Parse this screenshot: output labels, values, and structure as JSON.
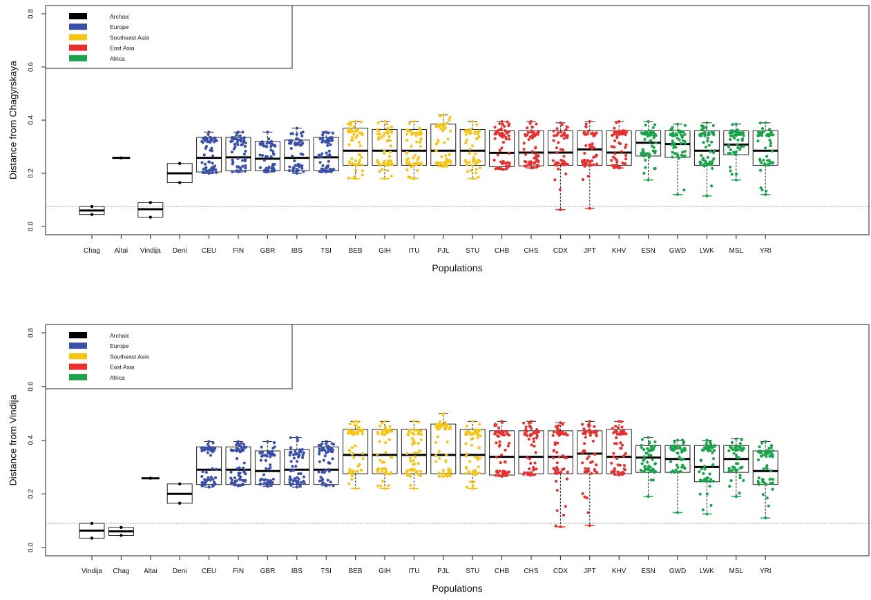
{
  "legend": [
    {
      "label": "Archaic",
      "color": "#000000"
    },
    {
      "label": "Europe",
      "color": "#3a4fa8"
    },
    {
      "label": "Southeast Asia",
      "color": "#f5c518"
    },
    {
      "label": "East Asia",
      "color": "#e8312f"
    },
    {
      "label": "Africa",
      "color": "#1aa34a"
    }
  ],
  "chart_data": [
    {
      "type": "box",
      "title": "",
      "xlabel": "Populations",
      "ylabel": "Distance from Chagyrskaya",
      "ylim": [
        0,
        0.8
      ],
      "yticks": [
        "0.0",
        "0.2",
        "0.4",
        "0.6",
        "0.8"
      ],
      "reference_line": 0.075,
      "categories": [
        "Chag",
        "Altai",
        "Vindija",
        "Deni",
        "CEU",
        "FIN",
        "GBR",
        "IBS",
        "TSI",
        "BEB",
        "GIH",
        "ITU",
        "PJL",
        "STU",
        "CHB",
        "CHS",
        "CDX",
        "JPT",
        "KHV",
        "ESN",
        "GWD",
        "LWK",
        "MSL",
        "YRI"
      ],
      "groups": [
        "Archaic",
        "Archaic",
        "Archaic",
        "Archaic",
        "Europe",
        "Europe",
        "Europe",
        "Europe",
        "Europe",
        "Southeast Asia",
        "Southeast Asia",
        "Southeast Asia",
        "Southeast Asia",
        "Southeast Asia",
        "East Asia",
        "East Asia",
        "East Asia",
        "East Asia",
        "East Asia",
        "Africa",
        "Africa",
        "Africa",
        "Africa",
        "Africa"
      ],
      "boxes": [
        {
          "q1": 0.045,
          "median": 0.06,
          "q3": 0.075,
          "lo": 0.045,
          "hi": 0.075
        },
        {
          "q1": 0.258,
          "median": 0.258,
          "q3": 0.258,
          "lo": 0.258,
          "hi": 0.258
        },
        {
          "q1": 0.035,
          "median": 0.065,
          "q3": 0.09,
          "lo": 0.035,
          "hi": 0.09
        },
        {
          "q1": 0.165,
          "median": 0.2,
          "q3": 0.237,
          "lo": 0.165,
          "hi": 0.237
        },
        {
          "q1": 0.205,
          "median": 0.258,
          "q3": 0.335,
          "lo": 0.2,
          "hi": 0.355
        },
        {
          "q1": 0.21,
          "median": 0.26,
          "q3": 0.335,
          "lo": 0.205,
          "hi": 0.355
        },
        {
          "q1": 0.21,
          "median": 0.255,
          "q3": 0.32,
          "lo": 0.205,
          "hi": 0.355
        },
        {
          "q1": 0.21,
          "median": 0.258,
          "q3": 0.325,
          "lo": 0.2,
          "hi": 0.37
        },
        {
          "q1": 0.21,
          "median": 0.26,
          "q3": 0.335,
          "lo": 0.205,
          "hi": 0.355
        },
        {
          "q1": 0.23,
          "median": 0.285,
          "q3": 0.37,
          "lo": 0.18,
          "hi": 0.395
        },
        {
          "q1": 0.23,
          "median": 0.285,
          "q3": 0.365,
          "lo": 0.18,
          "hi": 0.395
        },
        {
          "q1": 0.23,
          "median": 0.285,
          "q3": 0.365,
          "lo": 0.18,
          "hi": 0.395
        },
        {
          "q1": 0.23,
          "median": 0.285,
          "q3": 0.385,
          "lo": 0.225,
          "hi": 0.42
        },
        {
          "q1": 0.23,
          "median": 0.285,
          "q3": 0.365,
          "lo": 0.18,
          "hi": 0.395
        },
        {
          "q1": 0.225,
          "median": 0.277,
          "q3": 0.36,
          "lo": 0.215,
          "hi": 0.395
        },
        {
          "q1": 0.228,
          "median": 0.278,
          "q3": 0.36,
          "lo": 0.22,
          "hi": 0.395
        },
        {
          "q1": 0.23,
          "median": 0.278,
          "q3": 0.36,
          "lo": 0.063,
          "hi": 0.39
        },
        {
          "q1": 0.23,
          "median": 0.29,
          "q3": 0.36,
          "lo": 0.068,
          "hi": 0.395
        },
        {
          "q1": 0.23,
          "median": 0.278,
          "q3": 0.36,
          "lo": 0.22,
          "hi": 0.395
        },
        {
          "q1": 0.265,
          "median": 0.315,
          "q3": 0.36,
          "lo": 0.175,
          "hi": 0.395
        },
        {
          "q1": 0.26,
          "median": 0.31,
          "q3": 0.36,
          "lo": 0.12,
          "hi": 0.385
        },
        {
          "q1": 0.23,
          "median": 0.285,
          "q3": 0.36,
          "lo": 0.115,
          "hi": 0.39
        },
        {
          "q1": 0.27,
          "median": 0.308,
          "q3": 0.36,
          "lo": 0.175,
          "hi": 0.385
        },
        {
          "q1": 0.23,
          "median": 0.285,
          "q3": 0.36,
          "lo": 0.12,
          "hi": 0.39
        }
      ]
    },
    {
      "type": "box",
      "title": "",
      "xlabel": "Populations",
      "ylabel": "Distance from Vindija",
      "ylim": [
        0,
        0.8
      ],
      "yticks": [
        "0.0",
        "0.2",
        "0.4",
        "0.6",
        "0.8"
      ],
      "reference_line": 0.09,
      "categories": [
        "Vindija",
        "Chag",
        "Altai",
        "Deni",
        "CEU",
        "FIN",
        "GBR",
        "IBS",
        "TSI",
        "BEB",
        "GIH",
        "ITU",
        "PJL",
        "STU",
        "CHB",
        "CHS",
        "CDX",
        "JPT",
        "KHV",
        "ESN",
        "GWD",
        "LWK",
        "MSL",
        "YRI"
      ],
      "groups": [
        "Archaic",
        "Archaic",
        "Archaic",
        "Archaic",
        "Europe",
        "Europe",
        "Europe",
        "Europe",
        "Europe",
        "Southeast Asia",
        "Southeast Asia",
        "Southeast Asia",
        "Southeast Asia",
        "Southeast Asia",
        "East Asia",
        "East Asia",
        "East Asia",
        "East Asia",
        "East Asia",
        "Africa",
        "Africa",
        "Africa",
        "Africa",
        "Africa"
      ],
      "boxes": [
        {
          "q1": 0.035,
          "median": 0.063,
          "q3": 0.09,
          "lo": 0.035,
          "hi": 0.09
        },
        {
          "q1": 0.045,
          "median": 0.06,
          "q3": 0.075,
          "lo": 0.045,
          "hi": 0.075
        },
        {
          "q1": 0.258,
          "median": 0.258,
          "q3": 0.258,
          "lo": 0.258,
          "hi": 0.258
        },
        {
          "q1": 0.165,
          "median": 0.2,
          "q3": 0.237,
          "lo": 0.165,
          "hi": 0.237
        },
        {
          "q1": 0.235,
          "median": 0.29,
          "q3": 0.375,
          "lo": 0.225,
          "hi": 0.395
        },
        {
          "q1": 0.235,
          "median": 0.29,
          "q3": 0.375,
          "lo": 0.23,
          "hi": 0.395
        },
        {
          "q1": 0.235,
          "median": 0.285,
          "q3": 0.36,
          "lo": 0.228,
          "hi": 0.395
        },
        {
          "q1": 0.235,
          "median": 0.29,
          "q3": 0.365,
          "lo": 0.225,
          "hi": 0.41
        },
        {
          "q1": 0.235,
          "median": 0.29,
          "q3": 0.375,
          "lo": 0.23,
          "hi": 0.395
        },
        {
          "q1": 0.275,
          "median": 0.345,
          "q3": 0.44,
          "lo": 0.22,
          "hi": 0.47
        },
        {
          "q1": 0.275,
          "median": 0.345,
          "q3": 0.44,
          "lo": 0.22,
          "hi": 0.47
        },
        {
          "q1": 0.275,
          "median": 0.345,
          "q3": 0.44,
          "lo": 0.22,
          "hi": 0.47
        },
        {
          "q1": 0.275,
          "median": 0.345,
          "q3": 0.46,
          "lo": 0.265,
          "hi": 0.5
        },
        {
          "q1": 0.275,
          "median": 0.345,
          "q3": 0.44,
          "lo": 0.22,
          "hi": 0.47
        },
        {
          "q1": 0.27,
          "median": 0.338,
          "q3": 0.435,
          "lo": 0.265,
          "hi": 0.47
        },
        {
          "q1": 0.275,
          "median": 0.338,
          "q3": 0.435,
          "lo": 0.27,
          "hi": 0.47
        },
        {
          "q1": 0.275,
          "median": 0.338,
          "q3": 0.435,
          "lo": 0.077,
          "hi": 0.465
        },
        {
          "q1": 0.275,
          "median": 0.35,
          "q3": 0.435,
          "lo": 0.082,
          "hi": 0.47
        },
        {
          "q1": 0.275,
          "median": 0.338,
          "q3": 0.44,
          "lo": 0.27,
          "hi": 0.47
        },
        {
          "q1": 0.28,
          "median": 0.335,
          "q3": 0.38,
          "lo": 0.19,
          "hi": 0.41
        },
        {
          "q1": 0.28,
          "median": 0.33,
          "q3": 0.38,
          "lo": 0.13,
          "hi": 0.4
        },
        {
          "q1": 0.245,
          "median": 0.3,
          "q3": 0.38,
          "lo": 0.125,
          "hi": 0.4
        },
        {
          "q1": 0.28,
          "median": 0.33,
          "q3": 0.38,
          "lo": 0.19,
          "hi": 0.405
        },
        {
          "q1": 0.235,
          "median": 0.285,
          "q3": 0.36,
          "lo": 0.11,
          "hi": 0.395
        }
      ]
    }
  ]
}
